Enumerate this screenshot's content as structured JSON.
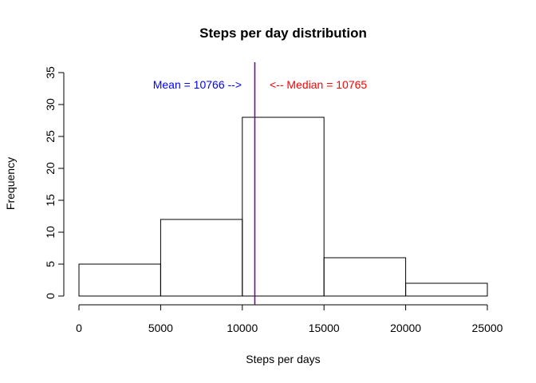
{
  "chart_data": {
    "type": "bar",
    "title": "Steps per day distribution",
    "xlabel": "Steps per days",
    "ylabel": "Frequency",
    "bins": [
      {
        "from": 0,
        "to": 5000,
        "count": 5
      },
      {
        "from": 5000,
        "to": 10000,
        "count": 12
      },
      {
        "from": 10000,
        "to": 15000,
        "count": 28
      },
      {
        "from": 15000,
        "to": 20000,
        "count": 6
      },
      {
        "from": 20000,
        "to": 25000,
        "count": 2
      }
    ],
    "xlim": [
      0,
      25000
    ],
    "ylim": [
      0,
      35
    ],
    "xticks": [
      0,
      5000,
      10000,
      15000,
      20000,
      25000
    ],
    "yticks": [
      0,
      5,
      10,
      15,
      20,
      25,
      30,
      35
    ],
    "grid": false,
    "annotations": {
      "mean_text": "Mean =  10766  -->",
      "median_text": "<-- Median =  10765",
      "mean_color": "#0000ff",
      "median_color": "#ff0000"
    },
    "reference_lines": [
      {
        "x": 10766,
        "color": "#0000ff"
      },
      {
        "x": 10765,
        "color": "#ff0000"
      }
    ]
  }
}
